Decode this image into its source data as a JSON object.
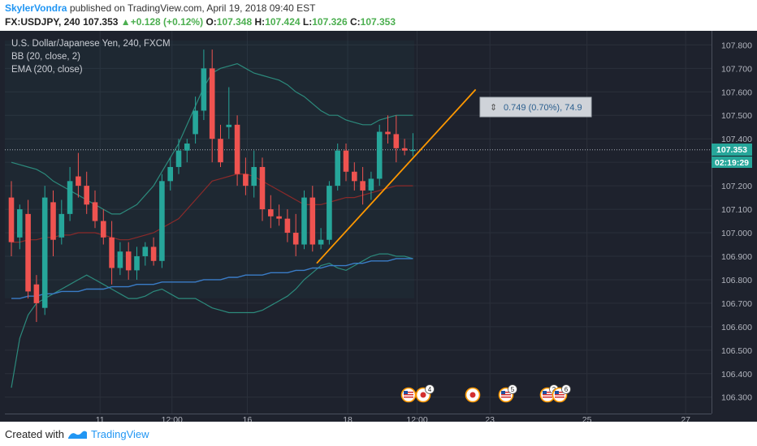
{
  "header": {
    "author": "SkylerVondra",
    "published_text": " published on TradingView.com, April 19, 2018 09:40 EST",
    "symbol": "FX:USDJPY, 240",
    "last": "107.353",
    "change": "+0.128 (+0.12%)",
    "o_label": "O:",
    "o_value": "107.348",
    "h_label": "H:",
    "h_value": "107.424",
    "l_label": "L:",
    "l_value": "107.326",
    "c_label": "C:",
    "c_value": "107.353"
  },
  "legend": {
    "title": "U.S. Dollar/Japanese Yen, 240, FXCM",
    "bb": "BB (20, close, 2)",
    "ema": "EMA (200, close)"
  },
  "measure_label": "0.749 (0.70%), 74.9",
  "price_tag": "107.353",
  "countdown_tag": "02:19:29",
  "footer": {
    "created": "Created with",
    "brand": "TradingView"
  },
  "colors": {
    "background": "#1e222d",
    "up": "#26a69a",
    "down": "#ef5350",
    "bb_band": "#2c8a7c",
    "bb_basis": "#8b2a2a",
    "ema": "#3a7cc7",
    "trendline": "#ff9800",
    "accent": "#2196f3"
  },
  "event_icons": [
    {
      "name": "us-flag-icon",
      "badge": ""
    },
    {
      "name": "jp-flag-icon",
      "badge": "4"
    },
    {
      "name": "jp-flag-icon",
      "badge": ""
    },
    {
      "name": "us-flag-icon",
      "badge": "5"
    },
    {
      "name": "us-flag-icon",
      "badge": "2"
    },
    {
      "name": "us-flag-icon",
      "badge": "6"
    }
  ],
  "chart_data": {
    "type": "candlestick",
    "title": "U.S. Dollar/Japanese Yen, 240, FXCM",
    "ylim": [
      106.23,
      107.86
    ],
    "y_ticks": [
      "107.800",
      "107.700",
      "107.600",
      "107.500",
      "107.400",
      "107.300",
      "107.200",
      "107.100",
      "107.000",
      "106.900",
      "106.800",
      "106.700",
      "106.600",
      "106.500",
      "106.400",
      "106.300"
    ],
    "x_ticks": [
      "11",
      "12:00",
      "16",
      "18",
      "12:00",
      "23",
      "25",
      "27"
    ],
    "grid": true,
    "candles": [
      {
        "o": 107.15,
        "h": 107.22,
        "l": 106.9,
        "c": 106.96
      },
      {
        "o": 106.98,
        "h": 107.12,
        "l": 106.93,
        "c": 107.1
      },
      {
        "o": 107.08,
        "h": 107.14,
        "l": 106.72,
        "c": 106.75
      },
      {
        "o": 106.78,
        "h": 106.82,
        "l": 106.62,
        "c": 106.7
      },
      {
        "o": 106.68,
        "h": 107.2,
        "l": 106.65,
        "c": 107.15
      },
      {
        "o": 107.13,
        "h": 107.18,
        "l": 106.9,
        "c": 106.97
      },
      {
        "o": 106.98,
        "h": 107.14,
        "l": 106.95,
        "c": 107.08
      },
      {
        "o": 107.08,
        "h": 107.28,
        "l": 107.05,
        "c": 107.22
      },
      {
        "o": 107.24,
        "h": 107.34,
        "l": 107.15,
        "c": 107.2
      },
      {
        "o": 107.2,
        "h": 107.26,
        "l": 107.08,
        "c": 107.12
      },
      {
        "o": 107.13,
        "h": 107.18,
        "l": 107.02,
        "c": 107.05
      },
      {
        "o": 107.05,
        "h": 107.1,
        "l": 106.95,
        "c": 106.98
      },
      {
        "o": 106.98,
        "h": 107.05,
        "l": 106.78,
        "c": 106.85
      },
      {
        "o": 106.85,
        "h": 106.96,
        "l": 106.82,
        "c": 106.92
      },
      {
        "o": 106.92,
        "h": 106.96,
        "l": 106.8,
        "c": 106.84
      },
      {
        "o": 106.84,
        "h": 106.94,
        "l": 106.8,
        "c": 106.9
      },
      {
        "o": 106.9,
        "h": 106.96,
        "l": 106.86,
        "c": 106.94
      },
      {
        "o": 106.94,
        "h": 106.98,
        "l": 106.86,
        "c": 106.88
      },
      {
        "o": 106.88,
        "h": 107.25,
        "l": 106.85,
        "c": 107.22
      },
      {
        "o": 107.22,
        "h": 107.32,
        "l": 107.18,
        "c": 107.28
      },
      {
        "o": 107.28,
        "h": 107.4,
        "l": 107.25,
        "c": 107.35
      },
      {
        "o": 107.35,
        "h": 107.4,
        "l": 107.3,
        "c": 107.38
      },
      {
        "o": 107.42,
        "h": 107.58,
        "l": 107.38,
        "c": 107.52
      },
      {
        "o": 107.52,
        "h": 107.78,
        "l": 107.48,
        "c": 107.7
      },
      {
        "o": 107.7,
        "h": 107.78,
        "l": 107.3,
        "c": 107.4
      },
      {
        "o": 107.4,
        "h": 107.46,
        "l": 107.28,
        "c": 107.3
      },
      {
        "o": 107.45,
        "h": 107.62,
        "l": 107.4,
        "c": 107.46
      },
      {
        "o": 107.46,
        "h": 107.5,
        "l": 107.2,
        "c": 107.25
      },
      {
        "o": 107.25,
        "h": 107.32,
        "l": 107.16,
        "c": 107.2
      },
      {
        "o": 107.2,
        "h": 107.35,
        "l": 107.15,
        "c": 107.28
      },
      {
        "o": 107.28,
        "h": 107.32,
        "l": 107.05,
        "c": 107.1
      },
      {
        "o": 107.1,
        "h": 107.16,
        "l": 107.02,
        "c": 107.07
      },
      {
        "o": 107.07,
        "h": 107.12,
        "l": 107.03,
        "c": 107.06
      },
      {
        "o": 107.06,
        "h": 107.1,
        "l": 106.96,
        "c": 107.0
      },
      {
        "o": 107.0,
        "h": 107.08,
        "l": 106.9,
        "c": 106.95
      },
      {
        "o": 106.95,
        "h": 107.18,
        "l": 106.93,
        "c": 107.15
      },
      {
        "o": 107.15,
        "h": 107.2,
        "l": 106.92,
        "c": 106.95
      },
      {
        "o": 106.95,
        "h": 107.02,
        "l": 106.93,
        "c": 106.97
      },
      {
        "o": 106.97,
        "h": 107.22,
        "l": 106.95,
        "c": 107.2
      },
      {
        "o": 107.2,
        "h": 107.38,
        "l": 107.18,
        "c": 107.35
      },
      {
        "o": 107.35,
        "h": 107.38,
        "l": 107.22,
        "c": 107.26
      },
      {
        "o": 107.26,
        "h": 107.3,
        "l": 107.18,
        "c": 107.22
      },
      {
        "o": 107.22,
        "h": 107.28,
        "l": 107.12,
        "c": 107.18
      },
      {
        "o": 107.18,
        "h": 107.26,
        "l": 107.14,
        "c": 107.23
      },
      {
        "o": 107.23,
        "h": 107.46,
        "l": 107.2,
        "c": 107.43
      },
      {
        "o": 107.43,
        "h": 107.5,
        "l": 107.38,
        "c": 107.42
      },
      {
        "o": 107.42,
        "h": 107.5,
        "l": 107.3,
        "c": 107.36
      },
      {
        "o": 107.36,
        "h": 107.4,
        "l": 107.33,
        "c": 107.35
      },
      {
        "o": 107.348,
        "h": 107.424,
        "l": 107.326,
        "c": 107.353
      }
    ],
    "bb_upper": [
      107.3,
      107.29,
      107.28,
      107.27,
      107.25,
      107.22,
      107.2,
      107.18,
      107.16,
      107.14,
      107.12,
      107.1,
      107.08,
      107.08,
      107.1,
      107.12,
      107.16,
      107.2,
      107.26,
      107.32,
      107.38,
      107.46,
      107.54,
      107.62,
      107.68,
      107.7,
      107.71,
      107.72,
      107.7,
      107.68,
      107.67,
      107.66,
      107.65,
      107.63,
      107.6,
      107.58,
      107.55,
      107.52,
      107.5,
      107.5,
      107.48,
      107.47,
      107.46,
      107.46,
      107.48,
      107.49,
      107.5,
      107.5,
      107.5
    ],
    "bb_basis": [
      106.96,
      106.96,
      106.97,
      106.97,
      106.98,
      106.98,
      106.99,
      106.99,
      107.0,
      107.0,
      107.0,
      106.99,
      106.98,
      106.97,
      106.97,
      106.98,
      106.99,
      107.0,
      107.02,
      107.04,
      107.06,
      107.1,
      107.14,
      107.18,
      107.22,
      107.23,
      107.24,
      107.25,
      107.25,
      107.24,
      107.22,
      107.2,
      107.18,
      107.16,
      107.14,
      107.12,
      107.12,
      107.12,
      107.13,
      107.14,
      107.15,
      107.15,
      107.16,
      107.17,
      107.18,
      107.19,
      107.2,
      107.2,
      107.2
    ],
    "bb_lower": [
      106.34,
      106.55,
      106.65,
      106.7,
      106.72,
      106.74,
      106.76,
      106.78,
      106.8,
      106.82,
      106.8,
      106.78,
      106.76,
      106.74,
      106.72,
      106.72,
      106.73,
      106.75,
      106.76,
      106.74,
      106.72,
      106.72,
      106.72,
      106.7,
      106.68,
      106.67,
      106.66,
      106.66,
      106.66,
      106.66,
      106.67,
      106.69,
      106.71,
      106.73,
      106.76,
      106.8,
      106.83,
      106.86,
      106.87,
      106.85,
      106.84,
      106.86,
      106.88,
      106.9,
      106.91,
      106.91,
      106.9,
      106.9,
      106.89
    ],
    "ema": [
      106.72,
      106.72,
      106.73,
      106.73,
      106.74,
      106.74,
      106.75,
      106.75,
      106.75,
      106.76,
      106.76,
      106.76,
      106.77,
      106.77,
      106.77,
      106.78,
      106.78,
      106.78,
      106.79,
      106.79,
      106.79,
      106.79,
      106.79,
      106.8,
      106.8,
      106.8,
      106.81,
      106.81,
      106.82,
      106.82,
      106.82,
      106.83,
      106.83,
      106.83,
      106.84,
      106.84,
      106.85,
      106.85,
      106.86,
      106.86,
      106.86,
      106.87,
      106.87,
      106.88,
      106.88,
      106.88,
      106.89,
      106.89,
      106.89
    ],
    "trendline": {
      "start_index": 36.5,
      "start_price": 106.87,
      "end_index": 55.5,
      "end_price": 107.61
    },
    "current_price": 107.353,
    "measure": {
      "change": 0.749,
      "percent": 0.7,
      "pips": 74.9
    }
  }
}
